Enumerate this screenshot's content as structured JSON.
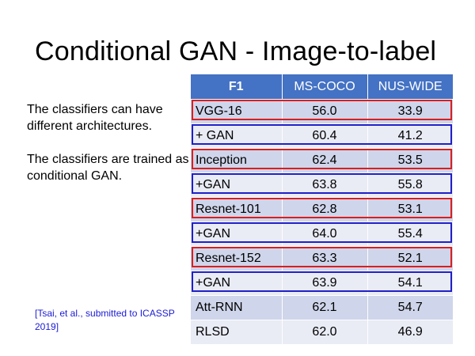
{
  "title": "Conditional GAN - Image-to-label",
  "notes": [
    "The classifiers can have different architectures.",
    "The classifiers are trained as conditional GAN."
  ],
  "citation": "[Tsai, et al., submitted to ICASSP 2019]",
  "table": {
    "headers": [
      "F1",
      "MS-COCO",
      "NUS-WIDE"
    ],
    "rows": [
      {
        "model": "VGG-16",
        "ms_coco": "56.0",
        "nus_wide": "33.9",
        "highlight": "red"
      },
      {
        "model": "+ GAN",
        "ms_coco": "60.4",
        "nus_wide": "41.2",
        "highlight": "blue"
      },
      {
        "model": "Inception",
        "ms_coco": "62.4",
        "nus_wide": "53.5",
        "highlight": "red"
      },
      {
        "model": "+GAN",
        "ms_coco": "63.8",
        "nus_wide": "55.8",
        "highlight": "blue"
      },
      {
        "model": "Resnet-101",
        "ms_coco": "62.8",
        "nus_wide": "53.1",
        "highlight": "red"
      },
      {
        "model": "+GAN",
        "ms_coco": "64.0",
        "nus_wide": "55.4",
        "highlight": "blue"
      },
      {
        "model": "Resnet-152",
        "ms_coco": "63.3",
        "nus_wide": "52.1",
        "highlight": "red"
      },
      {
        "model": "+GAN",
        "ms_coco": "63.9",
        "nus_wide": "54.1",
        "highlight": "blue"
      },
      {
        "model": "Att-RNN",
        "ms_coco": "62.1",
        "nus_wide": "54.7",
        "highlight": "none"
      },
      {
        "model": "RLSD",
        "ms_coco": "62.0",
        "nus_wide": "46.9",
        "highlight": "none"
      }
    ]
  },
  "colors": {
    "header_bg": "#4472c4",
    "row_dark": "#cfd5ea",
    "row_light": "#e9ebf5",
    "highlight_red": "#d81f1f",
    "highlight_blue": "#1f1fc8",
    "citation": "#1a1ad6"
  }
}
